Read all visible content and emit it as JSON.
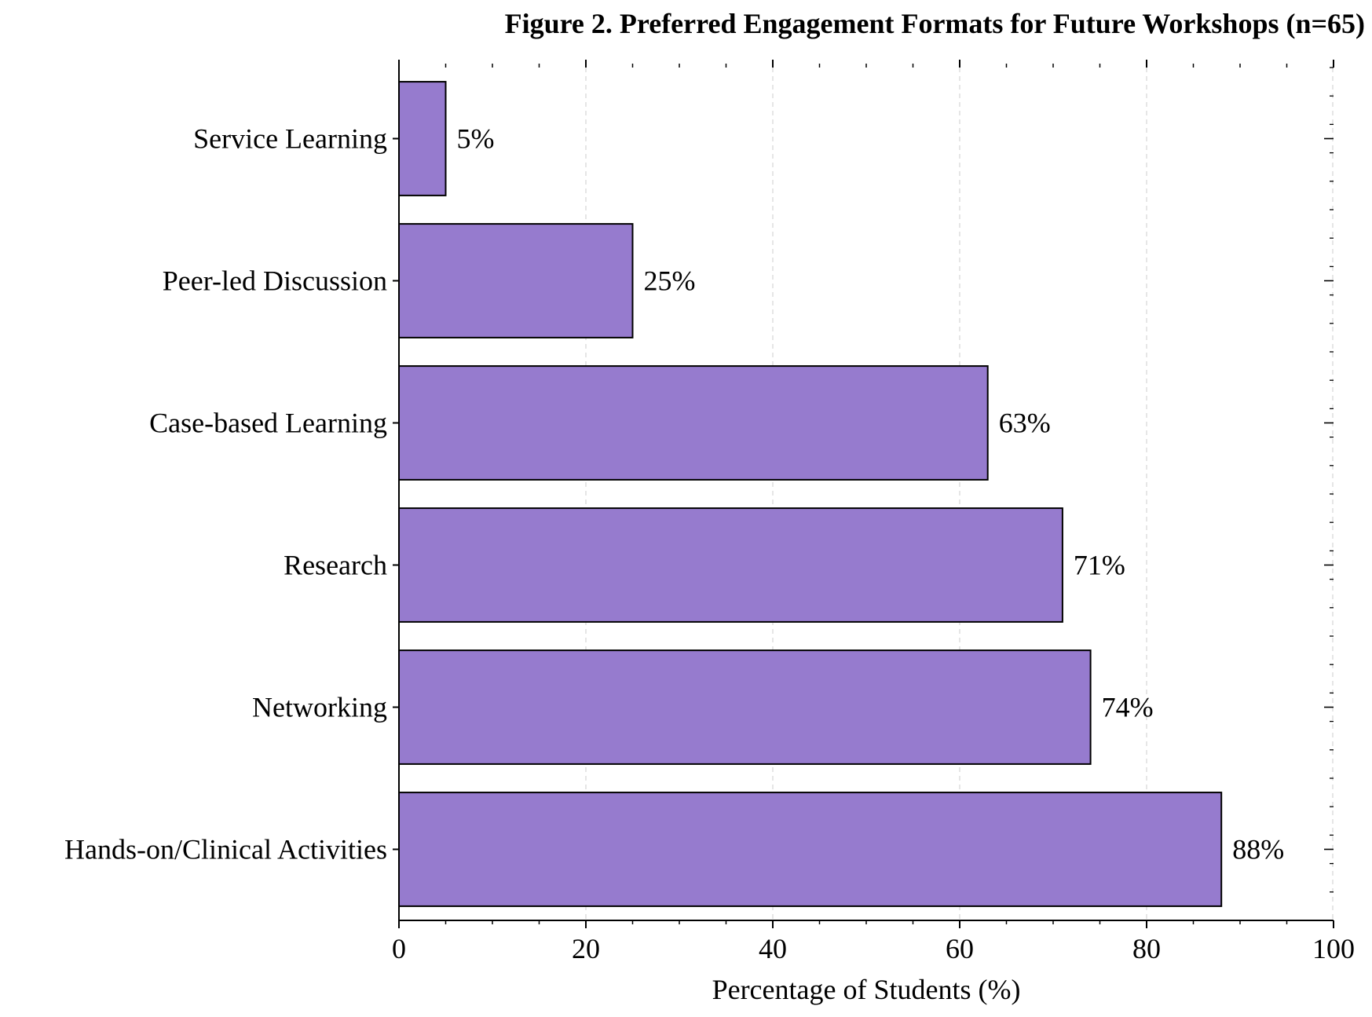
{
  "chart_data": {
    "type": "bar",
    "orientation": "horizontal",
    "title": "Figure 2. Preferred Engagement Formats for Future Workshops (n=65)",
    "xlabel": "Percentage of Students (%)",
    "ylabel": "",
    "categories": [
      "Hands-on/Clinical Activities",
      "Networking",
      "Research",
      "Case-based Learning",
      "Peer-led Discussion",
      "Service Learning"
    ],
    "values": [
      88,
      74,
      71,
      63,
      25,
      5
    ],
    "value_labels": [
      "88%",
      "74%",
      "71%",
      "63%",
      "25%",
      "5%"
    ],
    "xlim": [
      0,
      100
    ],
    "x_ticks": [
      0,
      20,
      40,
      60,
      80,
      100
    ],
    "x_tick_labels": [
      "0",
      "20",
      "40",
      "60",
      "80",
      "100"
    ],
    "grid": "vertical dashed",
    "bar_color": "#967bce",
    "edge_color": "#000000"
  }
}
